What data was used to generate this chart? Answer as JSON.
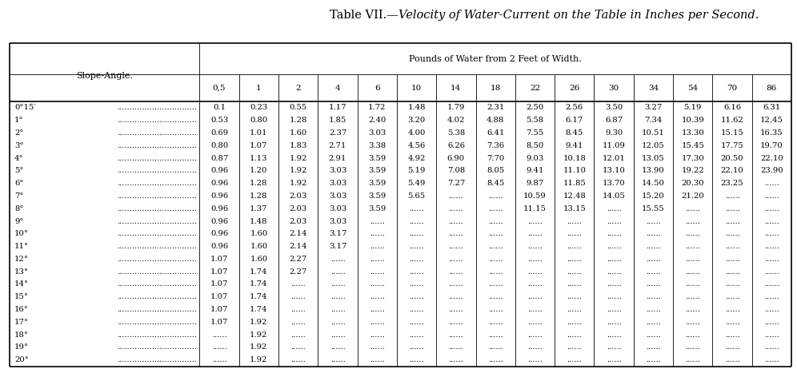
{
  "title_smallcaps": "Table VII.—",
  "title_italic": "Velocity of Water-Current on the Table in Inches per Second.",
  "col_header_main": "Pounds of Water from 2 Feet of Width.",
  "row_header": "Slope-Angle.",
  "columns": [
    "0,5",
    "1",
    "2",
    "4",
    "6",
    "10",
    "14",
    "18",
    "22",
    "26",
    "30",
    "34",
    "54",
    "70",
    "86"
  ],
  "rows": [
    {
      "label": "0°15′",
      "values": [
        "0.1",
        "0.23",
        "0.55",
        "1.17",
        "1.72",
        "1.48",
        "1.79",
        "2.31",
        "2.50",
        "2.56",
        "3.50",
        "3.27",
        "5.19",
        "6.16",
        "6.31"
      ]
    },
    {
      "label": "1°",
      "values": [
        "0.53",
        "0.80",
        "1.28",
        "1.85",
        "2.40",
        "3.20",
        "4.02",
        "4.88",
        "5.58",
        "6.17",
        "6.87",
        "7.34",
        "10.39",
        "11.62",
        "12.45"
      ]
    },
    {
      "label": "2°",
      "values": [
        "0.69",
        "1.01",
        "1.60",
        "2.37",
        "3.03",
        "4.00",
        "5.38",
        "6.41",
        "7.55",
        "8.45",
        "9.30",
        "10.51",
        "13.30",
        "15.15",
        "16.35"
      ]
    },
    {
      "label": "3°",
      "values": [
        "0.80",
        "1.07",
        "1.83",
        "2.71",
        "3.38",
        "4.56",
        "6.26",
        "7.36",
        "8.50",
        "9.41",
        "11.09",
        "12.05",
        "15.45",
        "17.75",
        "19.70"
      ]
    },
    {
      "label": "4°",
      "values": [
        "0.87",
        "1.13",
        "1.92",
        "2.91",
        "3.59",
        "4.92",
        "6.90",
        "7.70",
        "9.03",
        "10.18",
        "12.01",
        "13.05",
        "17.30",
        "20.50",
        "22.10"
      ]
    },
    {
      "label": "5°",
      "values": [
        "0.96",
        "1.20",
        "1.92",
        "3.03",
        "3.59",
        "5.19",
        "7.08",
        "8.05",
        "9.41",
        "11.10",
        "13.10",
        "13.90",
        "19.22",
        "22.10",
        "23.90"
      ]
    },
    {
      "label": "6°",
      "values": [
        "0.96",
        "1.28",
        "1.92",
        "3.03",
        "3.59",
        "5.49",
        "7.27",
        "8.45",
        "9.87",
        "11.85",
        "13.70",
        "14.50",
        "20.30",
        "23.25",
        "......"
      ]
    },
    {
      "label": "7°",
      "values": [
        "0.96",
        "1.28",
        "2.03",
        "3.03",
        "3.59",
        "5.65",
        "......",
        "......",
        "10.59",
        "12.48",
        "14.05",
        "15.20",
        "21.20",
        "......",
        "......"
      ]
    },
    {
      "label": "8°",
      "values": [
        "0.96",
        "1.37",
        "2.03",
        "3.03",
        "3.59",
        "......",
        "......",
        "......",
        "11.15",
        "13.15",
        "......",
        "15.55",
        "......",
        "......",
        "......"
      ]
    },
    {
      "label": "9°",
      "values": [
        "0.96",
        "1.48",
        "2.03",
        "3.03",
        "......",
        "......",
        "......",
        "......",
        "......",
        "......",
        "......",
        "......",
        "......",
        "......",
        "......"
      ]
    },
    {
      "label": "10°",
      "values": [
        "0.96",
        "1.60",
        "2.14",
        "3.17",
        "......",
        "......",
        "......",
        "......",
        "......",
        "......",
        "......",
        "......",
        "......",
        "......",
        "......"
      ]
    },
    {
      "label": "11°",
      "values": [
        "0.96",
        "1.60",
        "2.14",
        "3.17",
        "......",
        "......",
        "......",
        "......",
        "......",
        "......",
        "......",
        "......",
        "......",
        "......",
        "......"
      ]
    },
    {
      "label": "12°",
      "values": [
        "1.07",
        "1.60",
        "2.27",
        "......",
        "......",
        "......",
        "......",
        "......",
        "......",
        "......",
        "......",
        "......",
        "......",
        "......",
        "......"
      ]
    },
    {
      "label": "13°",
      "values": [
        "1.07",
        "1.74",
        "2.27",
        "......",
        "......",
        "......",
        "......",
        "......",
        "......",
        "......",
        "......",
        "......",
        "......",
        "......",
        "......"
      ]
    },
    {
      "label": "14°",
      "values": [
        "1.07",
        "1.74",
        "......",
        "......",
        "......",
        "......",
        "......",
        "......",
        "......",
        "......",
        "......",
        "......",
        "......",
        "......",
        "......"
      ]
    },
    {
      "label": "15°",
      "values": [
        "1.07",
        "1.74",
        "......",
        "......",
        "......",
        "......",
        "......",
        "......",
        "......",
        "......",
        "......",
        "......",
        "......",
        "......",
        "......"
      ]
    },
    {
      "label": "16°",
      "values": [
        "1.07",
        "1.74",
        "......",
        "......",
        "......",
        "......",
        "......",
        "......",
        "......",
        "......",
        "......",
        "......",
        "......",
        "......",
        "......"
      ]
    },
    {
      "label": "17°",
      "values": [
        "1.07",
        "1.92",
        "......",
        "......",
        "......",
        "......",
        "......",
        "......",
        "......",
        "......",
        "......",
        "......",
        "......",
        "......",
        "......"
      ]
    },
    {
      "label": "18°",
      "values": [
        "......",
        "1.92",
        "......",
        "......",
        "......",
        "......",
        "......",
        "......",
        "......",
        "......",
        "......",
        "......",
        "......",
        "......",
        "......"
      ]
    },
    {
      "label": "19°",
      "values": [
        "......",
        "1.92",
        "......",
        "......",
        "......",
        "......",
        "......",
        "......",
        "......",
        "......",
        "......",
        "......",
        "......",
        "......",
        "......"
      ]
    },
    {
      "label": "20°",
      "values": [
        "......",
        "1.92",
        "......",
        "......",
        "......",
        "......",
        "......",
        "......",
        "......",
        "......",
        "......",
        "......",
        "......",
        "......",
        "......"
      ]
    }
  ],
  "bg_color": "#ffffff",
  "text_color": "#000000"
}
